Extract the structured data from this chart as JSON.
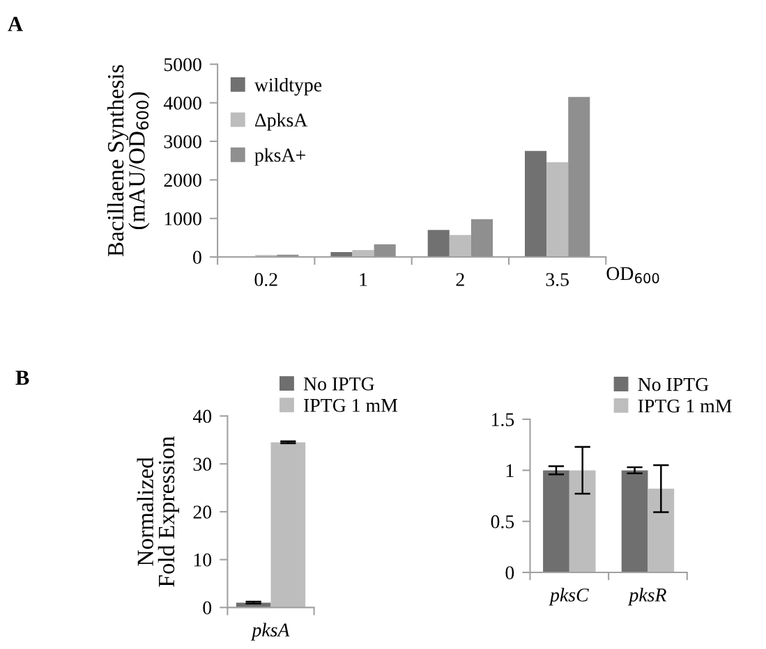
{
  "chart_data": [
    {
      "type": "bar",
      "annotations": [
        "A"
      ],
      "xlabel": "OD$_{600}$",
      "ylabel": "Bacillaene Synthesis\n(mAU/OD$_{600}$)",
      "categories": [
        "0.2",
        "1",
        "2",
        "3.5"
      ],
      "ylim": [
        0,
        5000
      ],
      "yticks": [
        0,
        1000,
        2000,
        3000,
        4000,
        5000
      ],
      "legend": "top left",
      "series": [
        {
          "name": "wildtype",
          "color": "#717171",
          "values": [
            10,
            130,
            700,
            2750
          ]
        },
        {
          "name": "ΔpksA",
          "color": "#bdbdbd",
          "values": [
            50,
            180,
            570,
            2460
          ]
        },
        {
          "name": "pksA+",
          "color": "#8f8f8f",
          "values": [
            60,
            330,
            980,
            4150
          ]
        }
      ]
    },
    {
      "type": "bar",
      "annotations": [
        "B"
      ],
      "ylabel": "Normalized\nFold Expression",
      "categories": [
        "pksA"
      ],
      "ylim": [
        0,
        40
      ],
      "yticks": [
        0,
        10,
        20,
        30,
        40
      ],
      "legend": "top right",
      "series": [
        {
          "name": "No IPTG",
          "color": "#6f6f6f",
          "values": [
            1.0
          ],
          "errors": [
            0.2
          ]
        },
        {
          "name": "IPTG 1 mM",
          "color": "#bdbdbd",
          "values": [
            34.5
          ],
          "errors": [
            0.2
          ]
        }
      ]
    },
    {
      "type": "bar",
      "categories": [
        "pksC",
        "pksR"
      ],
      "ylim": [
        0,
        1.5
      ],
      "yticks": [
        0,
        0.5,
        1,
        1.5
      ],
      "legend": "top right",
      "series": [
        {
          "name": "No IPTG",
          "color": "#6f6f6f",
          "values": [
            1.0,
            1.0
          ],
          "errors": [
            0.04,
            0.03
          ]
        },
        {
          "name": "IPTG 1 mM",
          "color": "#bdbdbd",
          "values": [
            1.0,
            0.82
          ],
          "errors": [
            0.23,
            0.23
          ]
        }
      ]
    }
  ]
}
